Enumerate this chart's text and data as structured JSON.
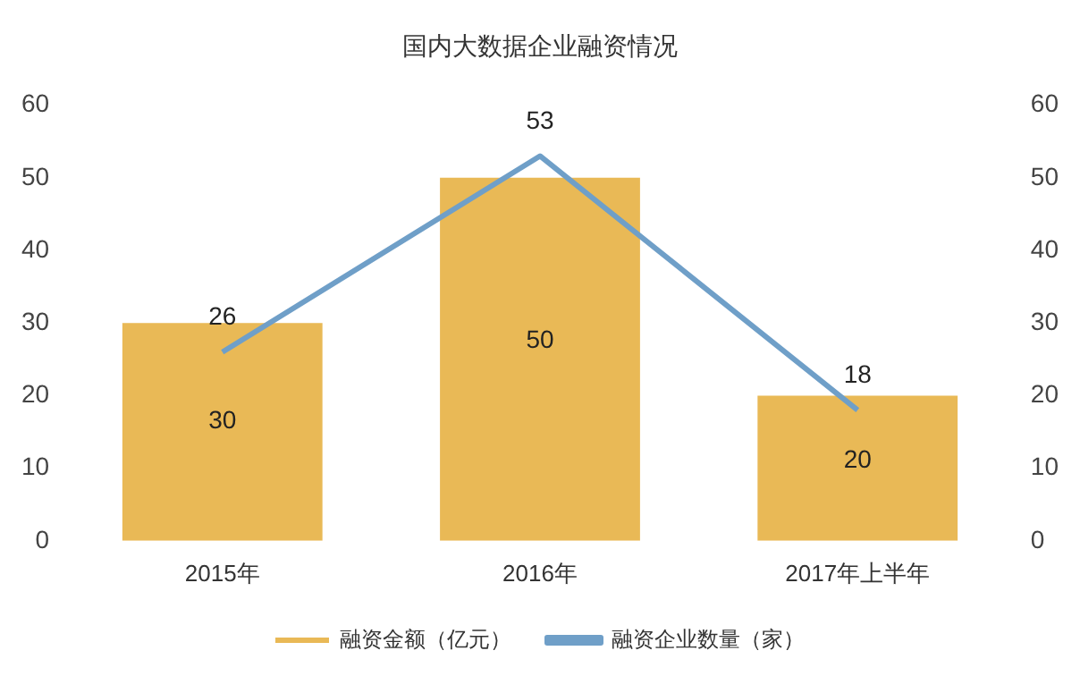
{
  "chart_data": {
    "type": "bar",
    "title": "国内大数据企业融资情况",
    "categories": [
      "2015年",
      "2016年",
      "2017年上半年"
    ],
    "series": [
      {
        "name": "融资金额（亿元）",
        "color": "#e9b956",
        "values": [
          30,
          50,
          20
        ]
      },
      {
        "name": "融资企业数量（家）",
        "type": "line",
        "axis": "y2",
        "color": "#6f9fc8",
        "values": [
          26,
          53,
          18
        ]
      }
    ],
    "ylim": [
      0,
      60
    ],
    "yticks": [
      0,
      10,
      20,
      30,
      40,
      50,
      60
    ],
    "y2lim": [
      0,
      60
    ],
    "y2ticks": [
      0,
      10,
      20,
      30,
      40,
      50,
      60
    ],
    "data_labels": true,
    "grid": false,
    "legend": "bottom",
    "marker": "none",
    "line_style": "solid"
  }
}
